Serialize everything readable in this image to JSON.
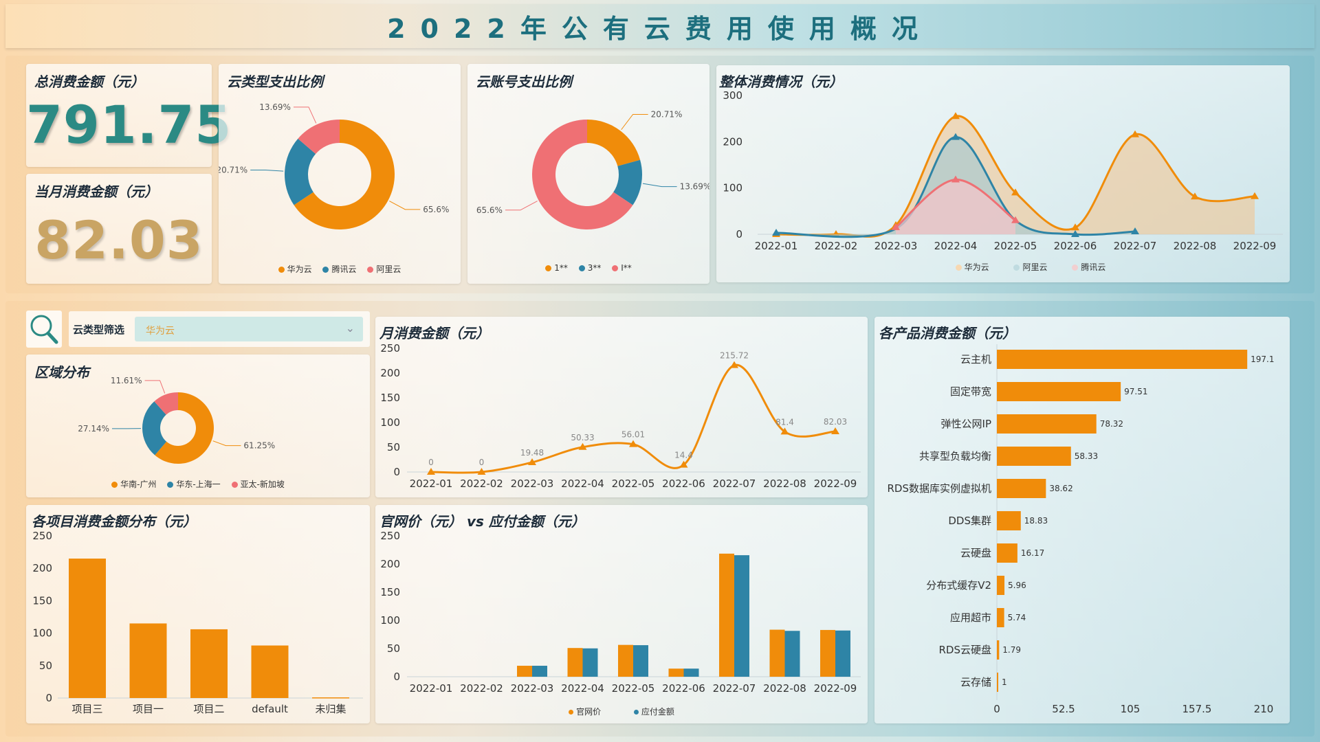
{
  "header": {
    "title": "2022年公有云费用使用概况"
  },
  "kpis": {
    "total_label": "总消费金额（元）",
    "total_value": "791.75",
    "month_label": "当月消费金额（元）",
    "month_value": "82.03"
  },
  "colors": {
    "orange": "#f08c0a",
    "blue": "#2e84a6",
    "pink": "#ef7074",
    "teal": "#2b8a84",
    "gold": "#c9a464"
  },
  "cloud_type_pie": {
    "title": "云类型支出比例",
    "slices": [
      {
        "name": "华为云",
        "label": "65.6%",
        "value": 65.6
      },
      {
        "name": "腾讯云",
        "label": "20.71%",
        "value": 20.71
      },
      {
        "name": "阿里云",
        "label": "13.69%",
        "value": 13.69
      }
    ]
  },
  "account_pie": {
    "title": "云账号支出比例",
    "slices": [
      {
        "name": "1**",
        "label": "20.71%",
        "value": 20.71
      },
      {
        "name": "3**",
        "label": "13.69%",
        "value": 13.69
      },
      {
        "name": "I**",
        "label": "65.6%",
        "value": 65.6
      }
    ]
  },
  "overall": {
    "title": "整体消费情况（元）",
    "chart_data": {
      "type": "area",
      "x": [
        "2022-01",
        "2022-02",
        "2022-03",
        "2022-04",
        "2022-05",
        "2022-06",
        "2022-07",
        "2022-08",
        "2022-09"
      ],
      "yticks": [
        "300",
        "200",
        "100",
        "0"
      ],
      "ylim": [
        0,
        300
      ],
      "series": [
        {
          "name": "华为云",
          "values": [
            0,
            0,
            19.48,
            255,
            90,
            14.4,
            215.72,
            81.4,
            82.03
          ]
        },
        {
          "name": "阿里云",
          "values": [
            3,
            null,
            null,
            210,
            null,
            0,
            6,
            null,
            null
          ]
        },
        {
          "name": "腾讯云",
          "values": [
            null,
            null,
            15,
            118,
            30,
            null,
            null,
            null,
            null
          ]
        }
      ]
    }
  },
  "filter": {
    "label": "云类型筛选",
    "value": "华为云"
  },
  "region_pie": {
    "title": "区域分布",
    "slices": [
      {
        "name": "华南-广州",
        "label": "61.25%",
        "value": 61.25
      },
      {
        "name": "华东-上海一",
        "label": "27.14%",
        "value": 27.14
      },
      {
        "name": "亚太-新加坡",
        "label": "11.61%",
        "value": 11.61
      }
    ]
  },
  "monthly": {
    "title": "月消费金额（元）",
    "chart_data": {
      "type": "line",
      "x": [
        "2022-01",
        "2022-02",
        "2022-03",
        "2022-04",
        "2022-05",
        "2022-06",
        "2022-07",
        "2022-08",
        "2022-09"
      ],
      "values": [
        0,
        0,
        19.48,
        50.33,
        56.01,
        14.4,
        215.72,
        81.4,
        82.03
      ],
      "labels": [
        "0",
        "0",
        "19.48",
        "50.33",
        "56.01",
        "14.4",
        "215.72",
        "81.4",
        "82.03"
      ],
      "yticks": [
        "250",
        "200",
        "150",
        "100",
        "50",
        "0"
      ],
      "ylim": [
        0,
        250
      ]
    }
  },
  "projects": {
    "title": "各项目消费金额分布（元）",
    "chart_data": {
      "type": "bar",
      "categories": [
        "项目三",
        "项目一",
        "项目二",
        "default",
        "未归集"
      ],
      "values": [
        215,
        115,
        106,
        81,
        1
      ],
      "yticks": [
        "250",
        "200",
        "150",
        "100",
        "50",
        "0"
      ],
      "ylim": [
        0,
        250
      ]
    }
  },
  "price_vs_pay": {
    "title": "官网价（元） vs 应付金额（元）",
    "chart_data": {
      "type": "bar",
      "categories": [
        "2022-01",
        "2022-02",
        "2022-03",
        "2022-04",
        "2022-05",
        "2022-06",
        "2022-07",
        "2022-08",
        "2022-09"
      ],
      "series": [
        {
          "name": "官网价",
          "values": [
            0,
            0,
            19.48,
            51,
            56.5,
            14.4,
            218.5,
            83.5,
            83
          ]
        },
        {
          "name": "应付金额",
          "values": [
            0,
            0,
            19.48,
            50.33,
            56.01,
            14.4,
            215.72,
            81.4,
            82.03
          ]
        }
      ],
      "yticks": [
        "250",
        "200",
        "150",
        "100",
        "50",
        "0"
      ],
      "ylim": [
        0,
        250
      ]
    }
  },
  "products": {
    "title": "各产品消费金额（元）",
    "chart_data": {
      "type": "bar",
      "categories": [
        "云主机",
        "固定带宽",
        "弹性公网IP",
        "共享型负载均衡",
        "RDS数据库实例虚拟机",
        "DDS集群",
        "云硬盘",
        "分布式缓存V2",
        "应用超市",
        "RDS云硬盘",
        "云存储"
      ],
      "values": [
        197.1,
        97.51,
        78.32,
        58.33,
        38.62,
        18.83,
        16.17,
        5.96,
        5.74,
        1.79,
        1
      ],
      "labels": [
        "197.1",
        "97.51",
        "78.32",
        "58.33",
        "38.62",
        "18.83",
        "16.17",
        "5.96",
        "5.74",
        "1.79",
        "1"
      ],
      "xticks": [
        "0",
        "52.5",
        "105",
        "157.5",
        "210"
      ],
      "xlim": [
        0,
        210
      ]
    }
  }
}
